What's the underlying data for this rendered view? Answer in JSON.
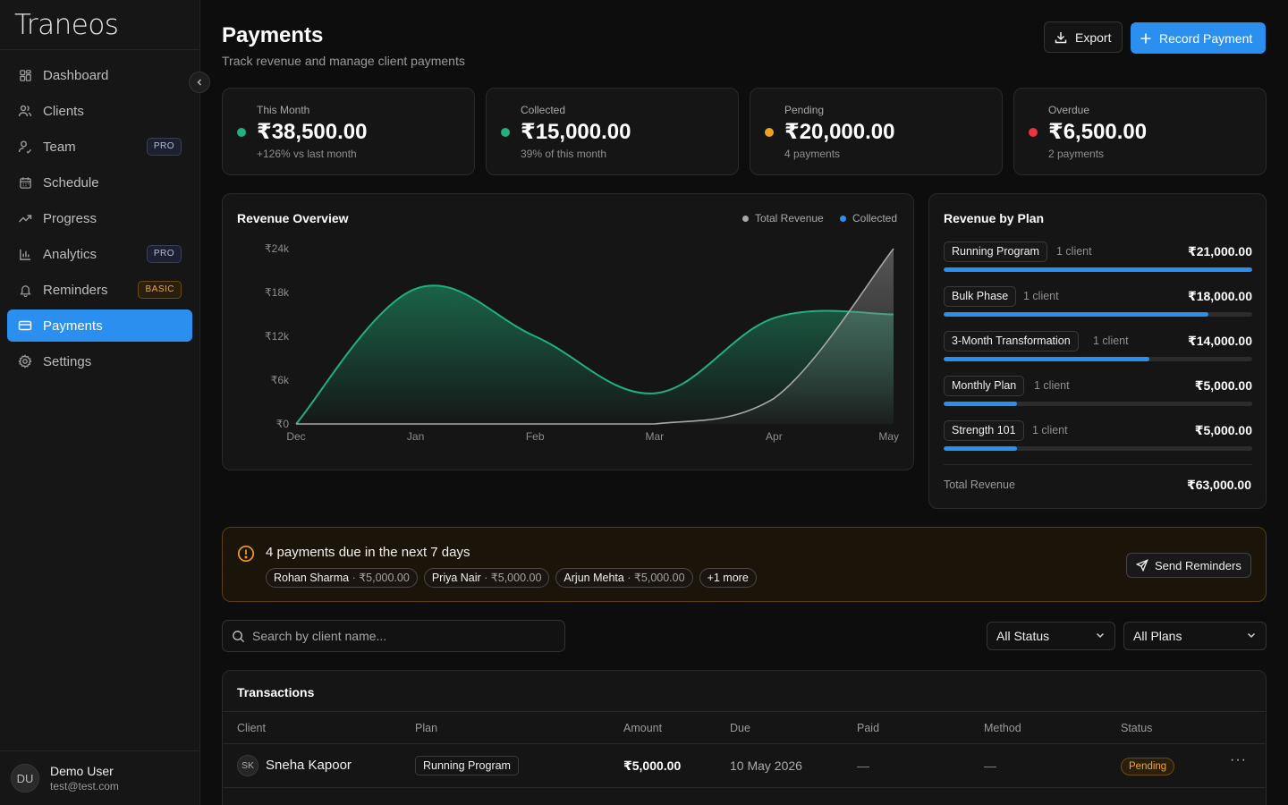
{
  "app": {
    "name": "Traneos"
  },
  "sidebar": {
    "items": [
      {
        "label": "Dashboard",
        "icon": "grid-icon",
        "active": false,
        "badge": ""
      },
      {
        "label": "Clients",
        "icon": "users-icon",
        "active": false,
        "badge": ""
      },
      {
        "label": "Team",
        "icon": "team-icon",
        "active": false,
        "badge": "PRO"
      },
      {
        "label": "Schedule",
        "icon": "calendar-icon",
        "active": false,
        "badge": ""
      },
      {
        "label": "Progress",
        "icon": "trend-icon",
        "active": false,
        "badge": ""
      },
      {
        "label": "Analytics",
        "icon": "bar-chart-icon",
        "active": false,
        "badge": "PRO"
      },
      {
        "label": "Reminders",
        "icon": "bell-icon",
        "active": false,
        "badge": "BASIC"
      },
      {
        "label": "Payments",
        "icon": "card-icon",
        "active": true,
        "badge": ""
      },
      {
        "label": "Settings",
        "icon": "gear-icon",
        "active": false,
        "badge": ""
      }
    ],
    "user": {
      "initials": "DU",
      "name": "Demo User",
      "email": "test@test.com"
    }
  },
  "header": {
    "title": "Payments",
    "subtitle": "Track revenue and manage client payments",
    "export_label": "Export",
    "record_label": "Record Payment"
  },
  "stats": [
    {
      "label": "This Month",
      "value": "₹38,500.00",
      "sub": "+126% vs last month",
      "color": "#22b07d"
    },
    {
      "label": "Collected",
      "value": "₹15,000.00",
      "sub": "39% of this month",
      "color": "#22b07d"
    },
    {
      "label": "Pending",
      "value": "₹20,000.00",
      "sub": "4 payments",
      "color": "#f0a020"
    },
    {
      "label": "Overdue",
      "value": "₹6,500.00",
      "sub": "2 payments",
      "color": "#ef3340"
    }
  ],
  "revenue_overview": {
    "title": "Revenue Overview",
    "legend": [
      {
        "name": "Total Revenue",
        "color": "#a8a8a8"
      },
      {
        "name": "Collected",
        "color": "#2b8ff0"
      }
    ]
  },
  "chart_data": {
    "type": "area",
    "title": "Revenue Overview",
    "categories": [
      "Dec",
      "Jan",
      "Feb",
      "Mar",
      "Apr",
      "May"
    ],
    "y_tick_labels": [
      "₹0",
      "₹6k",
      "₹12k",
      "₹18k",
      "₹24k"
    ],
    "ylim": [
      0,
      24000
    ],
    "series": [
      {
        "name": "Total Revenue",
        "values": [
          0,
          0,
          0,
          0,
          3500,
          24000
        ],
        "color": "#a8a8a8"
      },
      {
        "name": "Collected",
        "values": [
          0,
          18500,
          12000,
          4200,
          14500,
          15000
        ],
        "color": "#22b07d"
      }
    ],
    "legend": "top-right",
    "grid": false
  },
  "revenue_by_plan": {
    "title": "Revenue by Plan",
    "plans": [
      {
        "name": "Running Program",
        "clients": "1 client",
        "amount": "₹21,000.00",
        "share": 1.0
      },
      {
        "name": "Bulk Phase",
        "clients": "1 client",
        "amount": "₹18,000.00",
        "share": 0.857
      },
      {
        "name": "3-Month Transformation",
        "clients": "1 client",
        "amount": "₹14,000.00",
        "share": 0.667
      },
      {
        "name": "Monthly Plan",
        "clients": "1 client",
        "amount": "₹5,000.00",
        "share": 0.238
      },
      {
        "name": "Strength 101",
        "clients": "1 client",
        "amount": "₹5,000.00",
        "share": 0.238
      }
    ],
    "total_label": "Total Revenue",
    "total_value": "₹63,000.00"
  },
  "due_alert": {
    "title": "4 payments due in the next 7 days",
    "payments": [
      {
        "name": "Rohan Sharma",
        "amount": "· ₹5,000.00"
      },
      {
        "name": "Priya Nair",
        "amount": "· ₹5,000.00"
      },
      {
        "name": "Arjun Mehta",
        "amount": "· ₹5,000.00"
      }
    ],
    "more_label": "+1 more",
    "button_label": "Send Reminders"
  },
  "filters": {
    "search_placeholder": "Search by client name...",
    "status_value": "All Status",
    "plan_value": "All Plans"
  },
  "transactions": {
    "title": "Transactions",
    "columns": [
      "Client",
      "Plan",
      "Amount",
      "Due",
      "Paid",
      "Method",
      "Status"
    ],
    "rows": [
      {
        "initials": "SK",
        "client": "Sneha Kapoor",
        "plan": "Running Program",
        "amount": "₹5,000.00",
        "due": "10 May 2026",
        "paid": "—",
        "method": "—",
        "status": "Pending"
      }
    ]
  }
}
